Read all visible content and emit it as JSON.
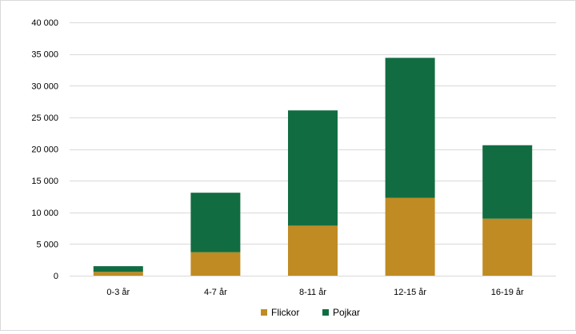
{
  "chart_data": {
    "type": "bar",
    "stacked": true,
    "categories": [
      "0-3 år",
      "4-7 år",
      "8-11 år",
      "12-15 år",
      "16-19 år"
    ],
    "series": [
      {
        "name": "Flickor",
        "color": "#c08b23",
        "values": [
          600,
          3700,
          7900,
          12300,
          9000
        ]
      },
      {
        "name": "Pojkar",
        "color": "#116d41",
        "values": [
          900,
          9400,
          18200,
          22100,
          11600
        ]
      }
    ],
    "ylim": [
      0,
      40000
    ],
    "yticks": [
      0,
      5000,
      10000,
      15000,
      20000,
      25000,
      30000,
      35000,
      40000
    ],
    "ytick_labels": [
      "0",
      "5 000",
      "10 000",
      "15 000",
      "20 000",
      "25 000",
      "30 000",
      "35 000",
      "40 000"
    ],
    "grid": true,
    "legend_position": "bottom"
  }
}
